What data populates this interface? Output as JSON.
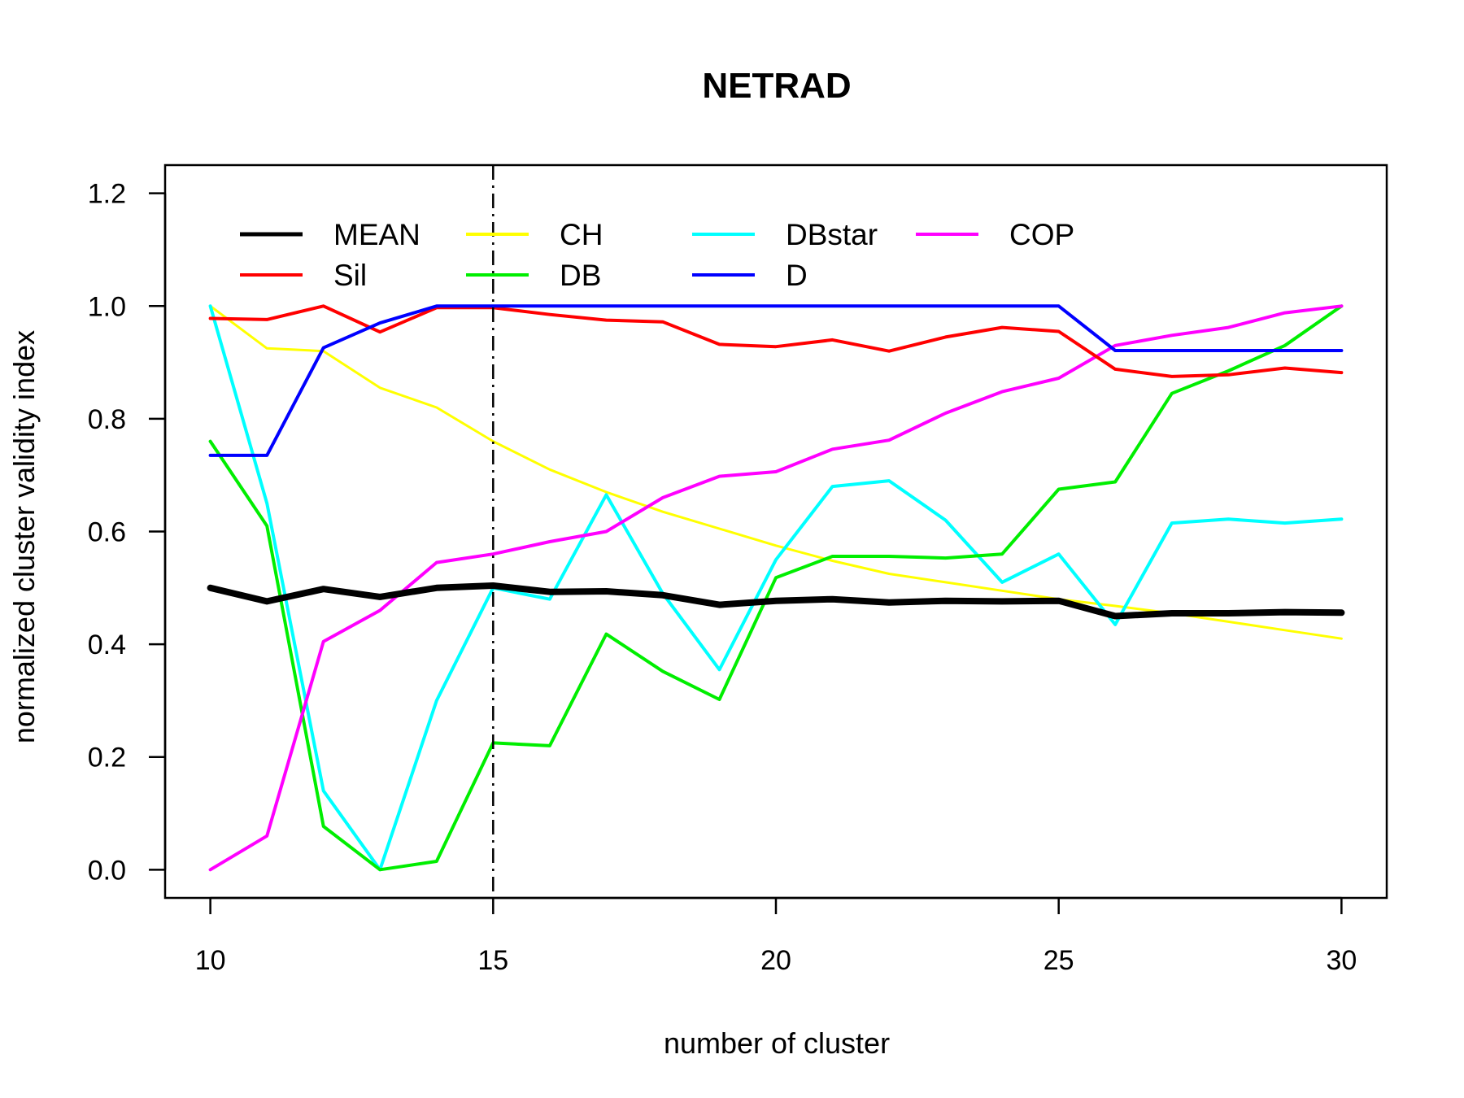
{
  "chart_data": {
    "type": "line",
    "title": "NETRAD",
    "xlabel": "number of cluster",
    "ylabel": "normalized cluster validity index",
    "xlim": [
      9.2,
      30.8
    ],
    "ylim": [
      -0.05,
      1.25
    ],
    "x_ticks": [
      10,
      15,
      20,
      25,
      30
    ],
    "y_ticks": [
      0.0,
      0.2,
      0.4,
      0.6,
      0.8,
      1.0,
      1.2
    ],
    "y_tick_labels": [
      "0.0",
      "0.2",
      "0.4",
      "0.6",
      "0.8",
      "1.0",
      "1.2"
    ],
    "vline": {
      "x": 15,
      "style": "dot-dash",
      "color": "#000000"
    },
    "x": [
      10,
      11,
      12,
      13,
      14,
      15,
      16,
      17,
      18,
      19,
      20,
      21,
      22,
      23,
      24,
      25,
      26,
      27,
      28,
      29,
      30
    ],
    "series": [
      {
        "name": "CH",
        "color": "#ffff00",
        "width": 3,
        "values": [
          1.0,
          0.925,
          0.92,
          0.855,
          0.82,
          0.76,
          0.71,
          0.67,
          0.635,
          0.605,
          0.575,
          0.548,
          0.525,
          0.51,
          0.495,
          0.48,
          0.468,
          0.455,
          0.44,
          0.425,
          0.41
        ]
      },
      {
        "name": "DBstar",
        "color": "#00ffff",
        "width": 4,
        "values": [
          1.0,
          0.65,
          0.14,
          0.0,
          0.3,
          0.5,
          0.48,
          0.665,
          0.49,
          0.355,
          0.55,
          0.68,
          0.69,
          0.62,
          0.51,
          0.56,
          0.435,
          0.615,
          0.622,
          0.615,
          0.622
        ]
      },
      {
        "name": "DB",
        "color": "#00ee00",
        "width": 4,
        "values": [
          0.76,
          0.61,
          0.077,
          0.0,
          0.015,
          0.225,
          0.22,
          0.418,
          0.352,
          0.302,
          0.518,
          0.556,
          0.556,
          0.553,
          0.56,
          0.675,
          0.688,
          0.845,
          0.885,
          0.93,
          1.0
        ]
      },
      {
        "name": "COP",
        "color": "#ff00ff",
        "width": 4,
        "values": [
          0.0,
          0.06,
          0.405,
          0.46,
          0.545,
          0.56,
          0.582,
          0.6,
          0.66,
          0.698,
          0.706,
          0.746,
          0.762,
          0.81,
          0.848,
          0.872,
          0.93,
          0.948,
          0.962,
          0.988,
          1.0
        ]
      },
      {
        "name": "Sil",
        "color": "#ff0000",
        "width": 4,
        "values": [
          0.978,
          0.976,
          1.0,
          0.954,
          0.997,
          0.997,
          0.985,
          0.975,
          0.972,
          0.932,
          0.928,
          0.94,
          0.92,
          0.945,
          0.962,
          0.955,
          0.888,
          0.875,
          0.878,
          0.89,
          0.882
        ]
      },
      {
        "name": "D",
        "color": "#0000ff",
        "width": 4,
        "values": [
          0.735,
          0.735,
          0.926,
          0.97,
          1.0,
          1.0,
          1.0,
          1.0,
          1.0,
          1.0,
          1.0,
          1.0,
          1.0,
          1.0,
          1.0,
          1.0,
          0.921,
          0.921,
          0.921,
          0.921,
          0.921
        ]
      },
      {
        "name": "MEAN",
        "color": "#000000",
        "width": 8,
        "values": [
          0.5,
          0.476,
          0.498,
          0.484,
          0.5,
          0.504,
          0.493,
          0.494,
          0.487,
          0.47,
          0.477,
          0.48,
          0.474,
          0.477,
          0.476,
          0.477,
          0.45,
          0.455,
          0.455,
          0.457,
          0.456
        ]
      }
    ],
    "legend": {
      "placement": "top-left",
      "columns": [
        [
          "MEAN",
          "Sil"
        ],
        [
          "CH",
          "DB"
        ],
        [
          "DBstar",
          "D"
        ],
        [
          "COP"
        ]
      ]
    }
  }
}
